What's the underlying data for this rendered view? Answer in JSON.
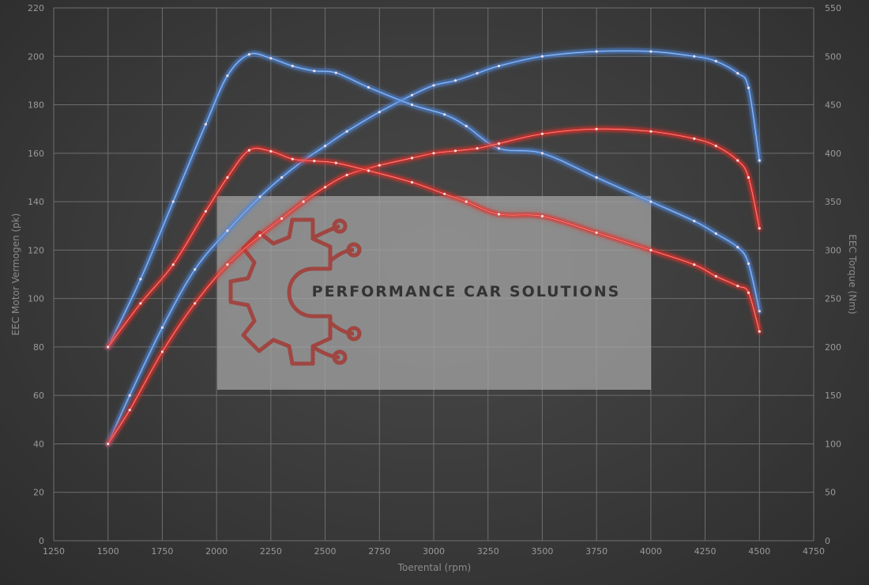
{
  "chart_data": {
    "type": "line",
    "xlabel": "Toerental (rpm)",
    "ylabel_left": "EEC Motor Vermogen (pk)",
    "ylabel_right": "EEC Torque (Nm)",
    "xlim": [
      1250,
      4750
    ],
    "ylim_left": [
      0,
      220
    ],
    "ylim_right": [
      0,
      550
    ],
    "x_ticks": [
      1250,
      1500,
      1750,
      2000,
      2250,
      2500,
      2750,
      3000,
      3250,
      3500,
      3750,
      4000,
      4250,
      4500,
      4750
    ],
    "y_left_ticks": [
      0,
      20,
      40,
      60,
      80,
      100,
      120,
      140,
      160,
      180,
      200,
      220
    ],
    "y_right_ticks": [
      0,
      50,
      100,
      150,
      200,
      250,
      300,
      350,
      400,
      450,
      500,
      550
    ],
    "grid": true,
    "series": [
      {
        "color": "#4f86d8",
        "axis": "left",
        "x": [
          1500,
          1600,
          1750,
          1900,
          2050,
          2200,
          2300,
          2400,
          2500,
          2600,
          2750,
          2900,
          3000,
          3100,
          3200,
          3300,
          3500,
          3750,
          4000,
          4200,
          4300,
          4400,
          4450,
          4500
        ],
        "values": [
          40,
          60,
          88,
          112,
          128,
          142,
          150,
          157,
          163,
          169,
          177,
          184,
          188,
          190,
          193,
          196,
          200,
          202,
          202,
          200,
          198,
          193,
          187,
          157
        ]
      },
      {
        "color": "#4f86d8",
        "axis": "right",
        "x": [
          1500,
          1650,
          1800,
          1950,
          2050,
          2150,
          2250,
          2350,
          2450,
          2550,
          2700,
          2900,
          3050,
          3150,
          3300,
          3500,
          3750,
          4000,
          4200,
          4300,
          4400,
          4450,
          4500
        ],
        "values": [
          200,
          270,
          350,
          430,
          480,
          502,
          498,
          490,
          485,
          483,
          468,
          450,
          440,
          428,
          405,
          400,
          375,
          350,
          330,
          317,
          303,
          286,
          237
        ]
      },
      {
        "color": "#e0302c",
        "axis": "left",
        "x": [
          1500,
          1600,
          1750,
          1900,
          2050,
          2200,
          2300,
          2400,
          2500,
          2600,
          2750,
          2900,
          3000,
          3100,
          3200,
          3300,
          3500,
          3750,
          4000,
          4200,
          4300,
          4400,
          4450,
          4500
        ],
        "values": [
          40,
          54,
          78,
          98,
          114,
          126,
          133,
          140,
          146,
          151,
          155,
          158,
          160,
          161,
          162,
          164,
          168,
          170,
          169,
          166,
          163,
          157,
          150,
          129
        ]
      },
      {
        "color": "#e0302c",
        "axis": "right",
        "x": [
          1500,
          1650,
          1800,
          1950,
          2050,
          2150,
          2250,
          2350,
          2450,
          2550,
          2700,
          2900,
          3050,
          3150,
          3300,
          3500,
          3750,
          4000,
          4200,
          4300,
          4400,
          4450,
          4500
        ],
        "values": [
          200,
          245,
          285,
          340,
          375,
          403,
          402,
          394,
          392,
          390,
          382,
          370,
          358,
          350,
          337,
          335,
          318,
          300,
          285,
          273,
          263,
          256,
          216
        ]
      }
    ]
  },
  "watermark": {
    "text": "PERFORMANCE CAR SOLUTIONS"
  }
}
